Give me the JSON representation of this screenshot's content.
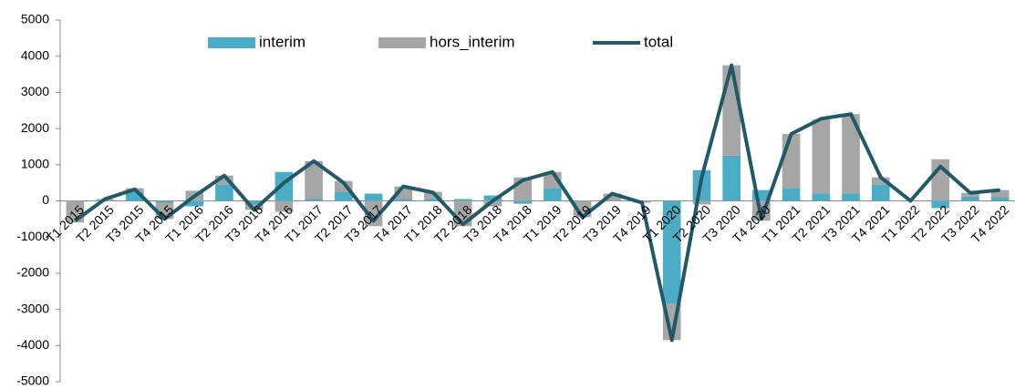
{
  "chart_data": {
    "type": "stacked_bar_line",
    "categories": [
      "T1 2015",
      "T2 2015",
      "T3 2015",
      "T4 2015",
      "T1 2016",
      "T2 2016",
      "T3 2016",
      "T4 2016",
      "T1 2017",
      "T2 2017",
      "T3 2017",
      "T4 2017",
      "T1 2018",
      "T2 2018",
      "T3 2018",
      "T4 2018",
      "T1 2019",
      "T2 2019",
      "T3 2019",
      "T4 2019",
      "T1 2020",
      "T2 2020",
      "T3 2020",
      "T4 2020",
      "T1 2021",
      "T2 2021",
      "T3 2021",
      "T4 2021",
      "T1 2022",
      "T2 2022",
      "T3 2022",
      "T4 2022"
    ],
    "series": [
      {
        "name": "interim",
        "color": "#4bacc6",
        "kind": "bar",
        "values": [
          0,
          0,
          250,
          -50,
          -150,
          450,
          -100,
          800,
          50,
          250,
          200,
          50,
          50,
          50,
          150,
          -80,
          350,
          0,
          0,
          0,
          -2850,
          850,
          1250,
          300,
          350,
          200,
          200,
          450,
          0,
          -200,
          120,
          100
        ]
      },
      {
        "name": "hors_interim",
        "color": "#a6a6a6",
        "kind": "bar",
        "values": [
          -600,
          50,
          100,
          -450,
          280,
          250,
          -150,
          -300,
          1050,
          300,
          -700,
          350,
          200,
          -700,
          -150,
          650,
          450,
          -450,
          200,
          -50,
          -1000,
          -100,
          2500,
          -550,
          1500,
          2050,
          2200,
          200,
          0,
          1150,
          100,
          200
        ]
      },
      {
        "name": "total",
        "color": "#215968",
        "kind": "line",
        "values": [
          -550,
          50,
          320,
          -500,
          130,
          700,
          -250,
          500,
          1100,
          500,
          -550,
          400,
          230,
          -650,
          0,
          570,
          800,
          -450,
          200,
          -50,
          -3850,
          650,
          3750,
          -500,
          1850,
          2270,
          2400,
          650,
          0,
          950,
          220,
          300
        ]
      }
    ],
    "ylim": [
      -5000,
      5000
    ],
    "yticks": [
      -5000,
      -4000,
      -3000,
      -2000,
      -1000,
      0,
      1000,
      2000,
      3000,
      4000,
      5000
    ]
  }
}
